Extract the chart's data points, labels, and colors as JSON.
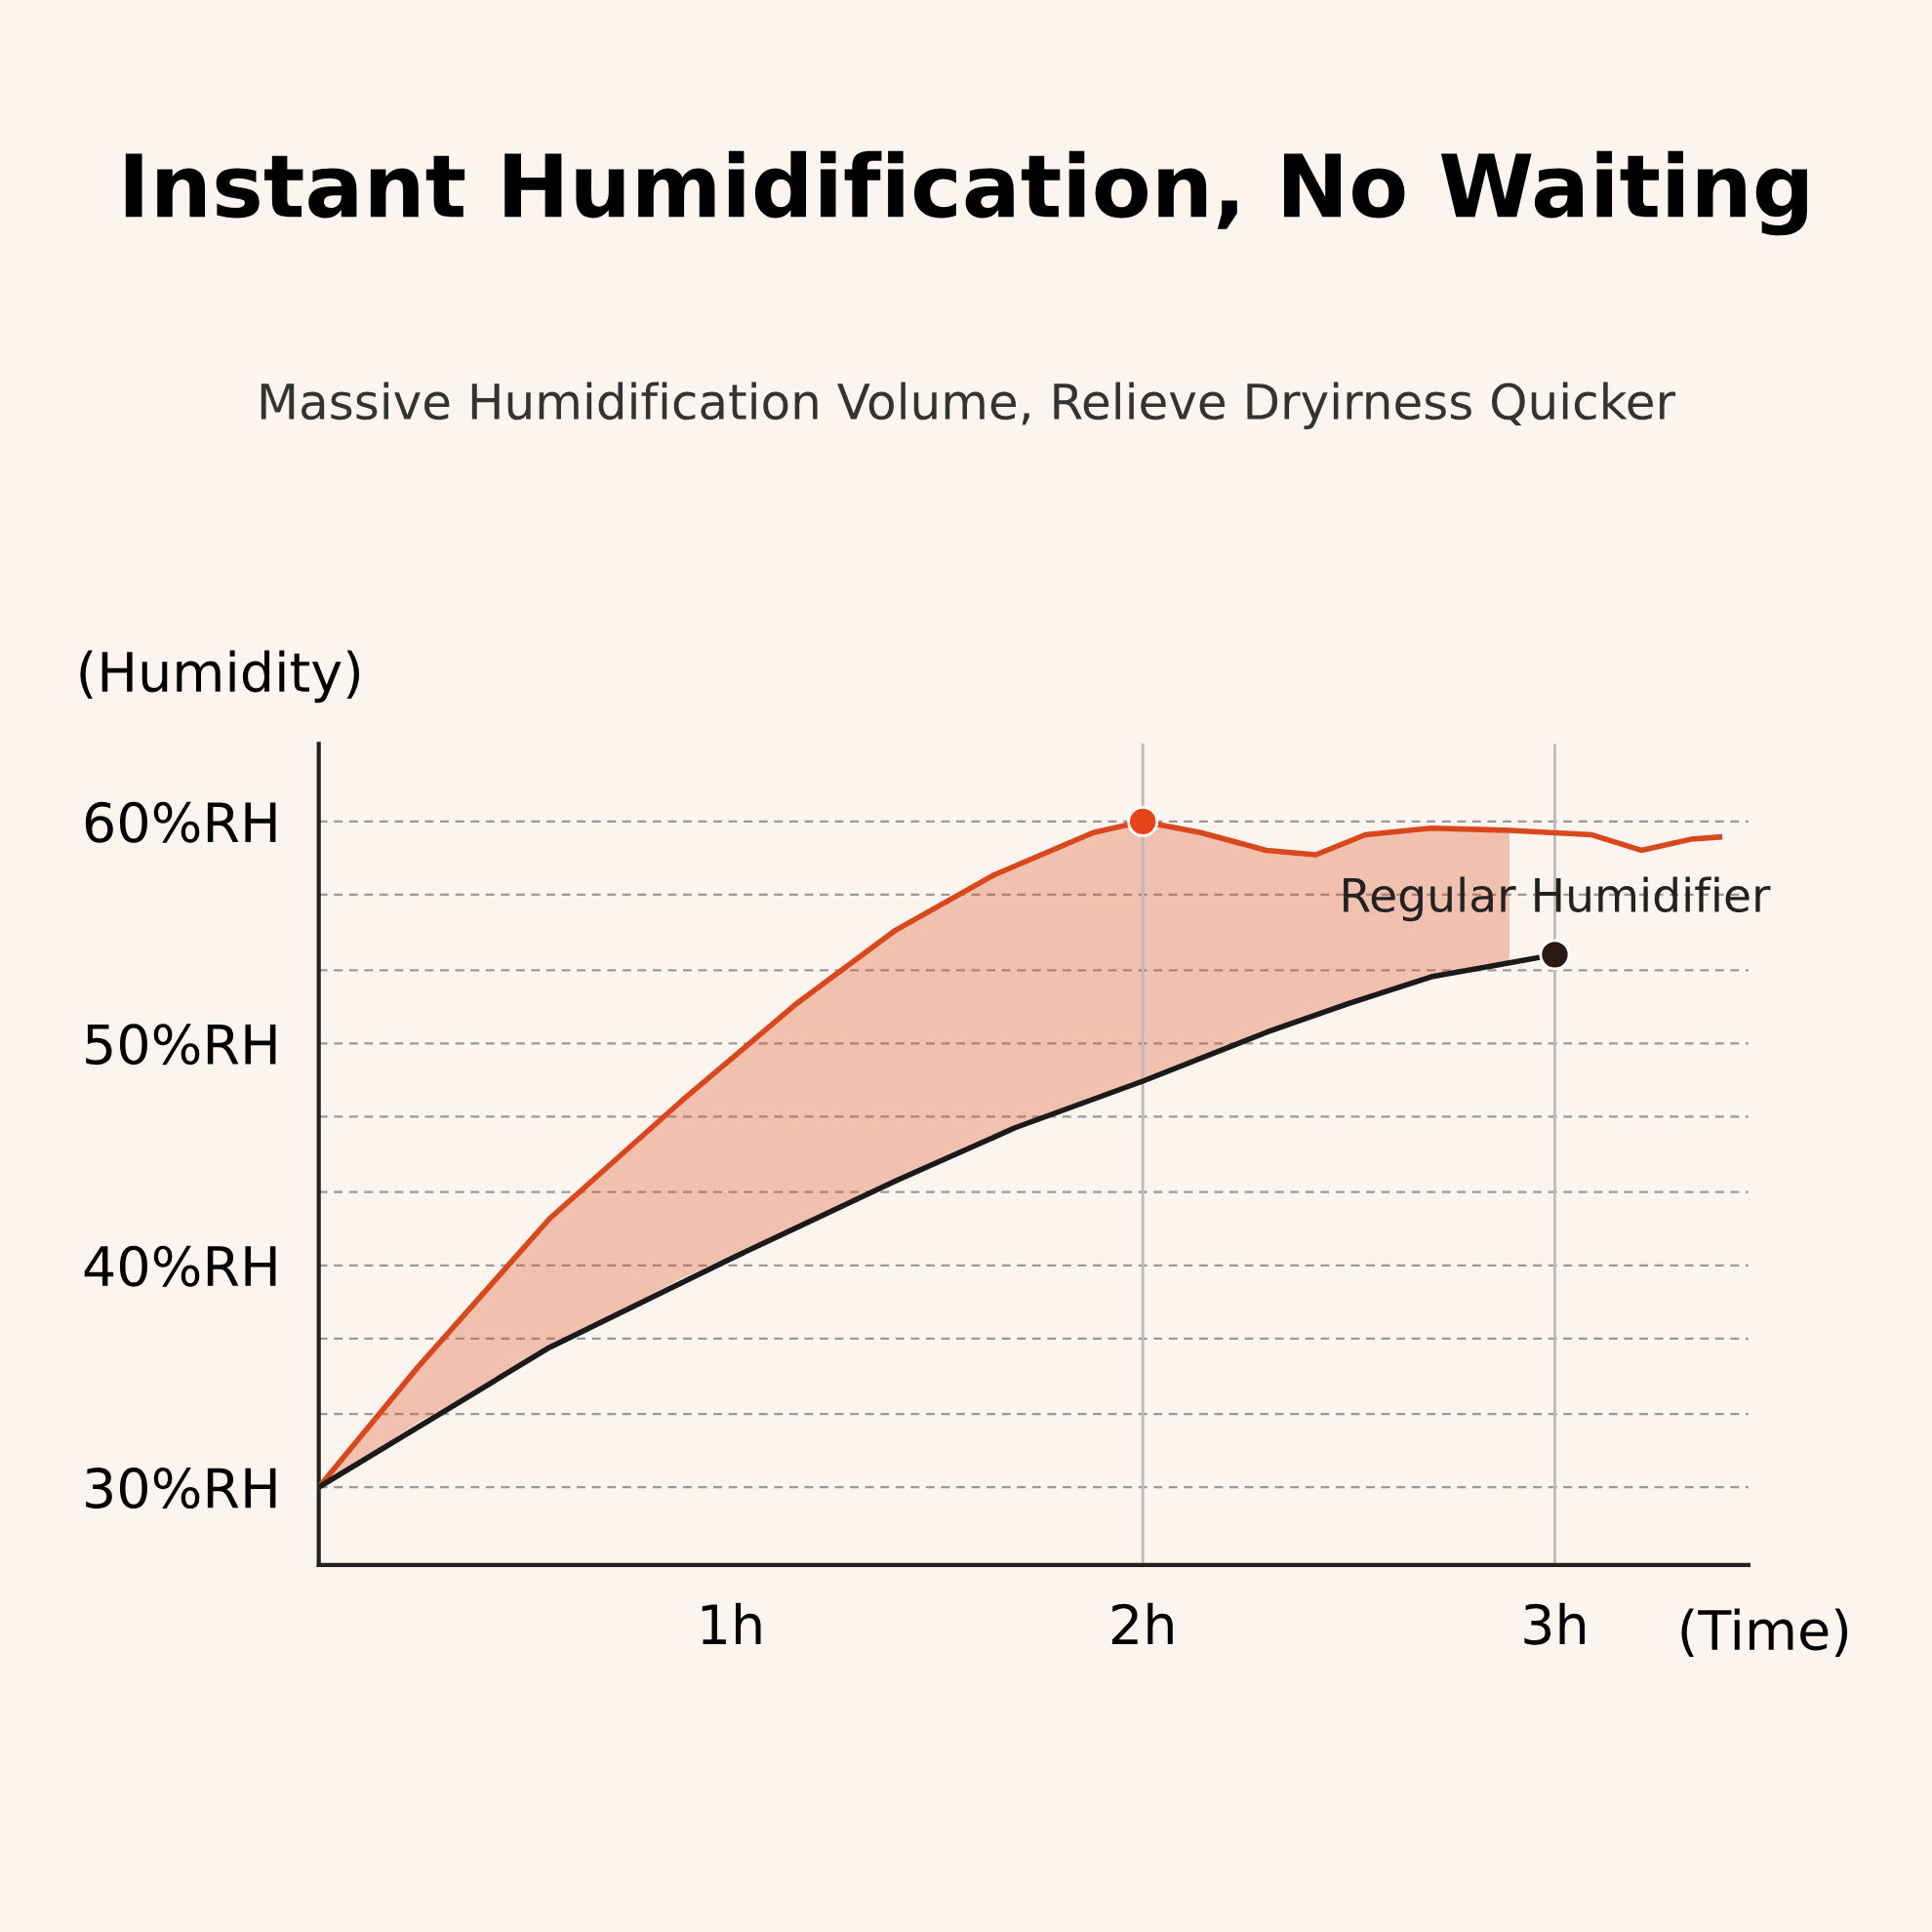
{
  "chart_data": {
    "type": "line",
    "title": "Instant Humidification, No Waiting",
    "subtitle": "Massive Humidification Volume, Relieve Dryirness Quicker",
    "ylabel": "(Humidity)",
    "xlabel": "(Time)",
    "xlim": [
      0,
      3.47
    ],
    "xticks": [
      {
        "value": 1,
        "label": "1h"
      },
      {
        "value": 2,
        "label": "2h"
      },
      {
        "value": 3,
        "label": "3h"
      }
    ],
    "ylim": [
      26.5,
      63.5
    ],
    "yticks": [
      {
        "value": 30,
        "label": "30%RH"
      },
      {
        "value": 33.3,
        "label": null
      },
      {
        "value": 36.7,
        "label": null
      },
      {
        "value": 40,
        "label": "40%RH"
      },
      {
        "value": 43.3,
        "label": null
      },
      {
        "value": 46.7,
        "label": null
      },
      {
        "value": 50,
        "label": "50%RH"
      },
      {
        "value": 53.3,
        "label": null
      },
      {
        "value": 56.7,
        "label": null
      },
      {
        "value": 60,
        "label": "60%RH"
      }
    ],
    "grid": "y",
    "line_style": "solid",
    "series": [
      {
        "color": "#d9481c",
        "x": [
          0,
          0.24,
          0.56,
          0.88,
          1.16,
          1.4,
          1.64,
          1.88,
          2,
          2.14,
          2.3,
          2.42,
          2.54,
          2.7,
          2.89,
          3.09,
          3.21,
          3.33,
          3.4
        ],
        "values": [
          30,
          35.4,
          42.1,
          47.4,
          51.8,
          55.1,
          57.6,
          59.5,
          60,
          59.5,
          58.7,
          58.5,
          59.4,
          59.7,
          59.6,
          59.4,
          58.7,
          59.2,
          59.3
        ],
        "lower": [
          30,
          32.9,
          36.3,
          39.4,
          41.8,
          43.8,
          45.9,
          47.6,
          48.3,
          49.3,
          50.5,
          51.2,
          51.9,
          53,
          53.6,
          null,
          null,
          null,
          null
        ],
        "upper": [
          30,
          35.4,
          42.1,
          47.4,
          51.8,
          55.1,
          57.6,
          59.5,
          60,
          59.5,
          58.7,
          58.5,
          59.4,
          59.7,
          59.6,
          null,
          null,
          null,
          null
        ]
      },
      {
        "name": "Regular Humidifier",
        "color": "#1a1a1a",
        "x": [
          0,
          0.56,
          1,
          1.4,
          1.69,
          2,
          2.3,
          2.5,
          2.7,
          3
        ],
        "values": [
          30,
          36.3,
          40.3,
          43.8,
          46.2,
          48.3,
          50.5,
          51.8,
          53,
          54
        ]
      },
      {
        "type": "scatter",
        "marker": "circle",
        "color": "#e8441a",
        "x": [
          2
        ],
        "values": [
          60
        ]
      },
      {
        "type": "scatter",
        "marker": "circle",
        "color": "#2a1a12",
        "x": [
          3
        ],
        "values": [
          54
        ]
      }
    ],
    "ref_lines": [
      {
        "axis": "x",
        "value": 2,
        "color": "#bbbbbb",
        "line_style": "solid"
      },
      {
        "axis": "x",
        "value": 3,
        "color": "#bbbbbb",
        "line_style": "solid"
      }
    ]
  }
}
